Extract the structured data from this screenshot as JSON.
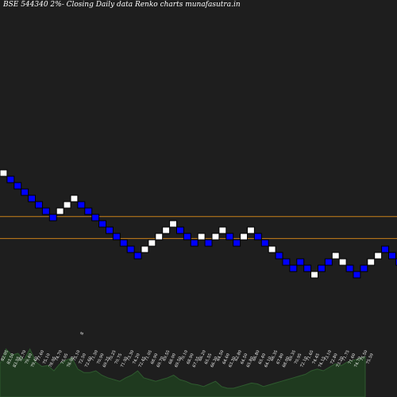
{
  "header": {
    "title": "BSE 544340  2%-  Closing Daily data  Renko  charts munafasutra.in"
  },
  "colors": {
    "background": "#1e1e1e",
    "up_brick": "#ffffff",
    "down_brick": "#0000ff",
    "brick_border": "#000000",
    "level_line": "#c9811a",
    "volume_fill": "#1f3a1f",
    "volume_edge": "#2f5a2f",
    "label_color": "#ffffff"
  },
  "chart_data": {
    "type": "renko",
    "box_size_percent": 2,
    "direction_code": {
      "up": "U",
      "down": "D"
    },
    "brick_directions": "UDDDDDDDUUUDDDDDDDDDUUUUUDDDUDUUDDUUDDUDDDDDUDDUUDDDUUDD",
    "brick_rows": [
      2,
      3,
      4,
      5,
      6,
      7,
      8,
      9,
      8,
      7,
      6,
      7,
      8,
      9,
      10,
      11,
      12,
      13,
      14,
      15,
      14,
      13,
      12,
      11,
      10,
      11,
      12,
      13,
      12,
      13,
      12,
      11,
      12,
      13,
      12,
      11,
      12,
      13,
      14,
      15,
      16,
      17,
      16,
      17,
      18,
      17,
      16,
      15,
      16,
      17,
      18,
      17,
      16,
      15,
      14,
      15,
      16
    ],
    "level_lines": [
      {
        "brick_row": 9.35
      },
      {
        "brick_row": 12.8
      }
    ],
    "volume_labels": [
      "82.05",
      "83.50",
      "83.55",
      "82.70",
      "79.40",
      "79.40",
      "77.60",
      "75.10",
      "78.05",
      "74.70",
      "75.05",
      "76.00",
      "75.10",
      "72.50",
      "72.60",
      "71.50",
      "70.90",
      "69.25",
      "70.25",
      "70.75",
      "71.95",
      "73.30",
      "74.20",
      "72.45",
      "71.05",
      "68.90",
      "69.70",
      "69.55",
      "68.00",
      "69.50",
      "70.10",
      "68.90",
      "67.55",
      "66.20",
      "65.55",
      "66.30",
      "64.50",
      "64.60",
      "63.30",
      "62.80",
      "64.50",
      "65.80",
      "66.80",
      "65.40",
      "64.10",
      "66.35",
      "67.80",
      "68.00",
      "69.35",
      "70.95",
      "72.10",
      "71.65",
      "74.45",
      "74.15",
      "73.10",
      "72.80",
      "73.20",
      "71.75",
      "71.60",
      "74.79",
      "75.50",
      "75.59"
    ],
    "volume_levels": [
      0.38,
      0.55,
      0.48,
      0.5,
      0.42,
      0.55,
      0.4,
      0.35,
      0.36,
      0.3,
      0.38,
      0.42,
      0.45,
      0.32,
      0.28,
      0.28,
      0.3,
      0.25,
      0.22,
      0.2,
      0.18,
      0.22,
      0.25,
      0.3,
      0.22,
      0.2,
      0.18,
      0.2,
      0.22,
      0.25,
      0.2,
      0.18,
      0.15,
      0.14,
      0.12,
      0.15,
      0.18,
      0.12,
      0.1,
      0.1,
      0.12,
      0.14,
      0.16,
      0.15,
      0.12,
      0.14,
      0.16,
      0.18,
      0.2,
      0.22,
      0.24,
      0.26,
      0.3,
      0.32,
      0.3,
      0.34,
      0.38,
      0.36,
      0.4,
      0.42,
      0.44,
      0.46
    ],
    "stray_label": "8"
  }
}
